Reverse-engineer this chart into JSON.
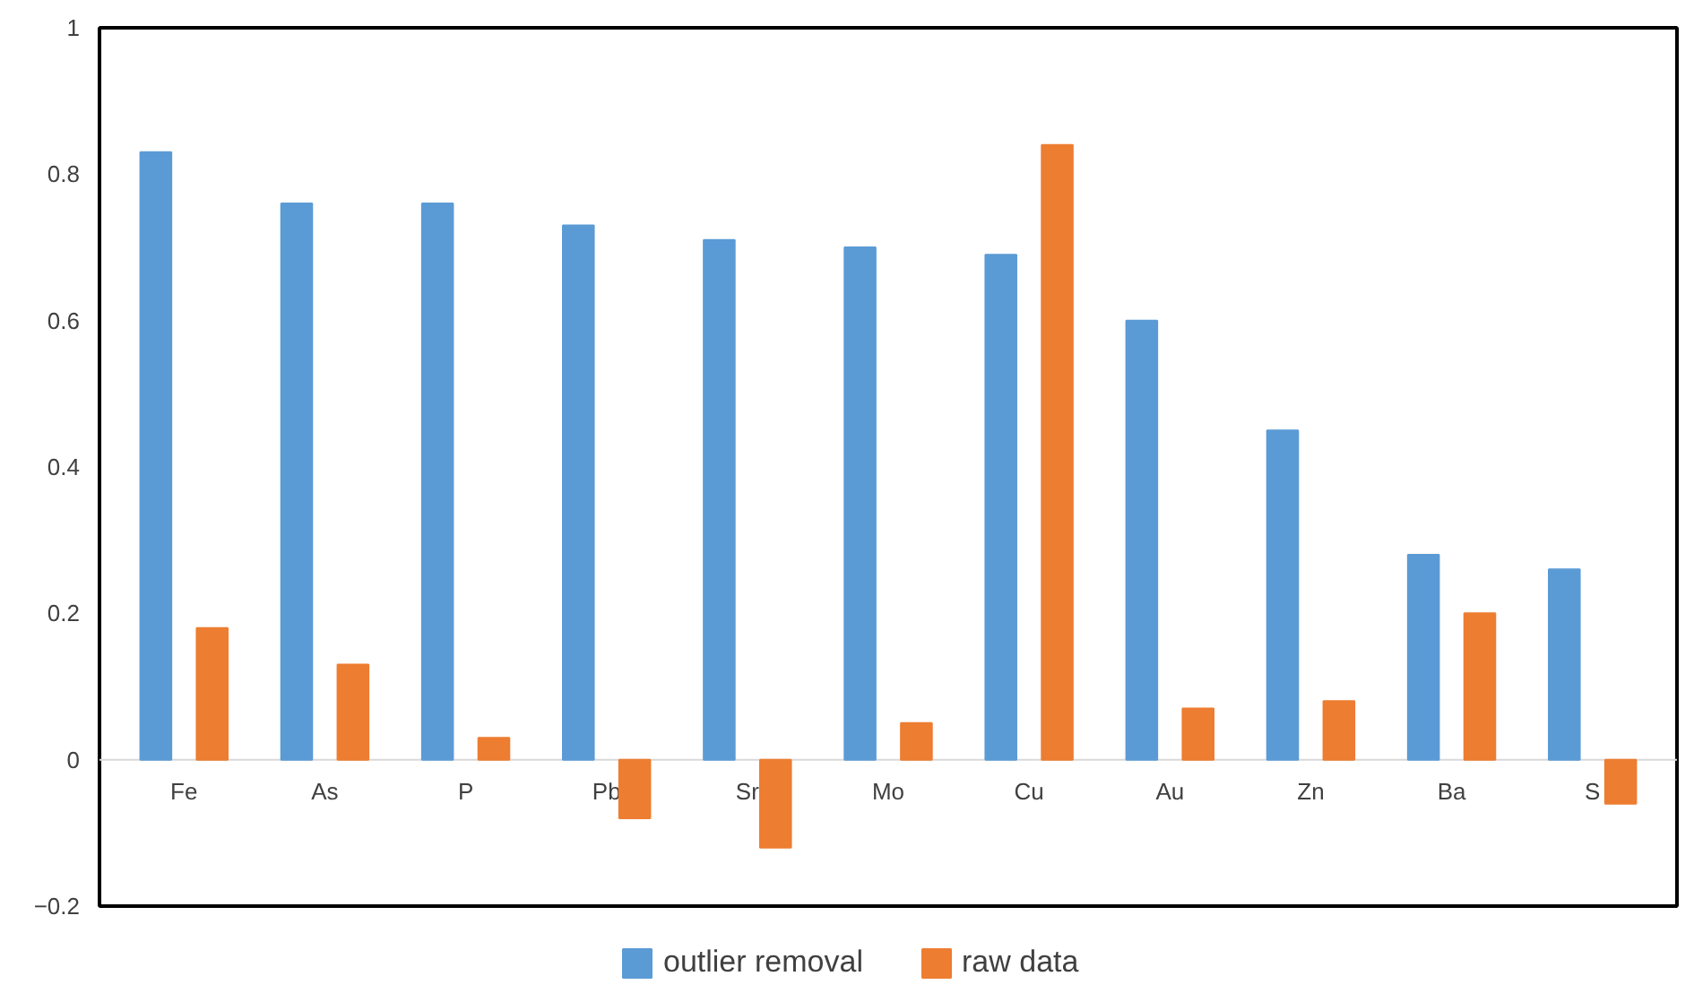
{
  "chart_data": {
    "type": "bar",
    "categories": [
      "Fe",
      "As",
      "P",
      "Pb",
      "Sr",
      "Mo",
      "Cu",
      "Au",
      "Zn",
      "Ba",
      "S"
    ],
    "series": [
      {
        "name": "outlier removal",
        "color": "#5b9bd5",
        "values": [
          0.83,
          0.76,
          0.76,
          0.73,
          0.71,
          0.7,
          0.69,
          0.6,
          0.45,
          0.28,
          0.26
        ]
      },
      {
        "name": "raw data",
        "color": "#ed7d31",
        "values": [
          0.18,
          0.13,
          0.03,
          -0.08,
          -0.12,
          0.05,
          0.84,
          0.07,
          0.08,
          0.2,
          -0.06
        ]
      }
    ],
    "ylim": [
      -0.2,
      1
    ],
    "yticks": [
      -0.2,
      0,
      0.2,
      0.4,
      0.6,
      0.8,
      1
    ],
    "grid": false,
    "legend": "bottom"
  }
}
